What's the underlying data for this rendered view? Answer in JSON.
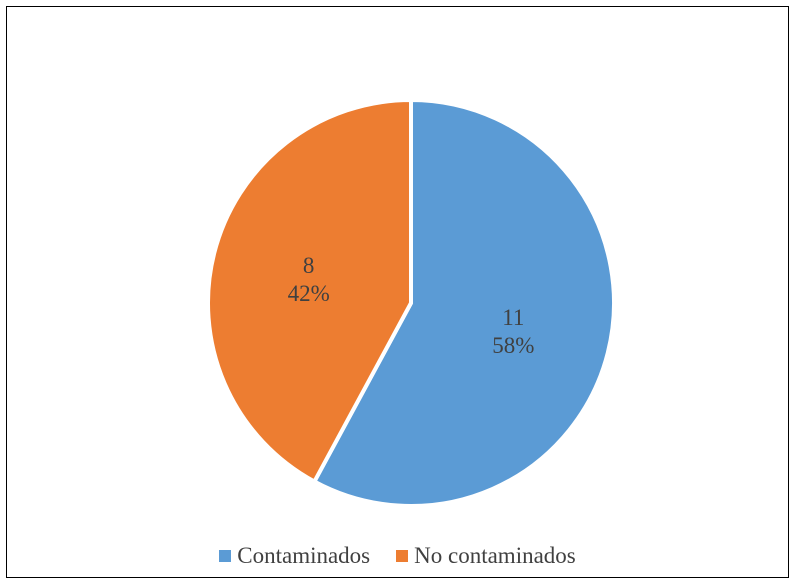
{
  "chart_data": {
    "type": "pie",
    "categories": [
      "Contaminados",
      "No contaminados"
    ],
    "values": [
      11,
      8
    ],
    "percent_labels": [
      "58%",
      "42%"
    ],
    "colors": [
      "#5B9BD5",
      "#ED7D31"
    ],
    "legend_position": "bottom",
    "start_angle": "12 o'clock, clockwise"
  }
}
